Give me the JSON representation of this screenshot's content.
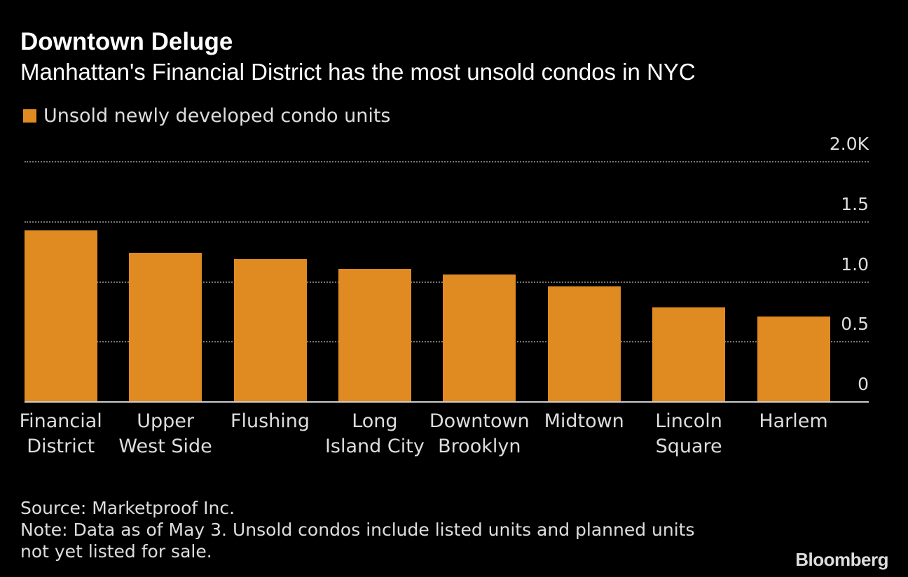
{
  "chart_data": {
    "type": "bar",
    "title": "Downtown Deluge",
    "subtitle": "Manhattan's Financial District has the most unsold condos in NYC",
    "categories": [
      "Financial District",
      "Upper West Side",
      "Flushing",
      "Long Island City",
      "Downtown Brooklyn",
      "Midtown",
      "Lincoln Square",
      "Harlem"
    ],
    "series": [
      {
        "name": "Unsold newly developed condo units",
        "color": "#e08a22",
        "values": [
          1.43,
          1.24,
          1.19,
          1.11,
          1.06,
          0.96,
          0.79,
          0.71
        ]
      }
    ],
    "ylim": [
      0,
      2
    ],
    "yticks": [
      0,
      0.5,
      {
        "value": 1,
        "label": "1.0"
      },
      1.5,
      {
        "value": 2,
        "label": "2.0K"
      }
    ],
    "grid": true,
    "source": "Source: Marketproof Inc.",
    "note": "Note: Data as of May 3. Unsold condos include listed units and planned units not yet listed for sale.",
    "logo": "Bloomberg"
  }
}
